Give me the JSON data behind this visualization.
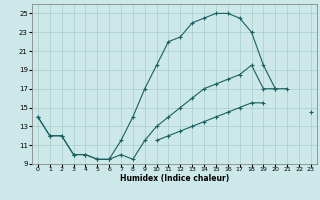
{
  "xlabel": "Humidex (Indice chaleur)",
  "bg_color": "#cce8e8",
  "grid_color": "#aacccc",
  "line_color": "#1a6060",
  "series1_y": [
    14.0,
    12.0,
    12.0,
    10.0,
    10.0,
    9.5,
    9.5,
    11.5,
    14.0,
    17.0,
    19.5,
    22.0,
    22.5,
    24.0,
    24.5,
    25.0,
    25.0,
    24.5,
    23.0,
    19.5,
    17.0,
    17.0,
    null,
    null
  ],
  "series2_y": [
    14.0,
    12.0,
    12.0,
    10.0,
    10.0,
    9.5,
    9.5,
    10.0,
    9.5,
    11.5,
    13.0,
    14.0,
    15.0,
    16.0,
    17.0,
    17.5,
    18.0,
    18.5,
    19.5,
    17.0,
    17.0,
    null,
    null,
    null
  ],
  "series3_y": [
    null,
    null,
    null,
    null,
    null,
    null,
    null,
    null,
    null,
    null,
    11.5,
    12.0,
    12.5,
    13.0,
    13.5,
    14.0,
    14.5,
    15.0,
    15.5,
    15.5,
    null,
    null,
    null,
    14.5
  ],
  "ylim": [
    9,
    26
  ],
  "xlim": [
    -0.5,
    23.5
  ],
  "yticks": [
    9,
    11,
    13,
    15,
    17,
    19,
    21,
    23,
    25
  ],
  "xticks": [
    0,
    1,
    2,
    3,
    4,
    5,
    6,
    7,
    8,
    9,
    10,
    11,
    12,
    13,
    14,
    15,
    16,
    17,
    18,
    19,
    20,
    21,
    22,
    23
  ]
}
